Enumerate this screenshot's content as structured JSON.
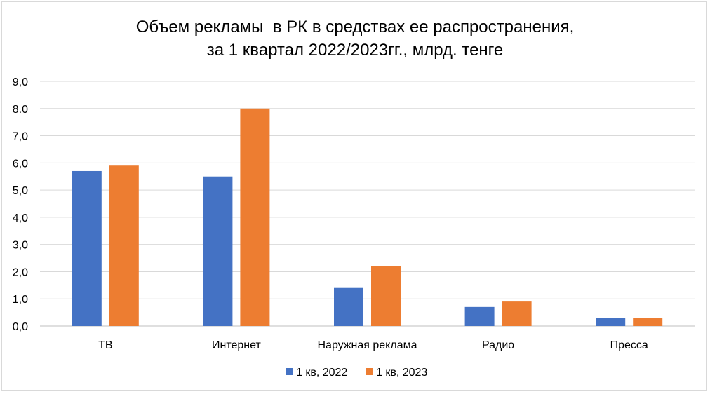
{
  "chart_data": {
    "type": "bar",
    "title_lines": [
      "Объем рекламы  в РК в средствах ее распространения,",
      "за 1 квартал 2022/2023гг., млрд. тенге"
    ],
    "xlabel": "",
    "ylabel": "",
    "categories": [
      "ТВ",
      "Интернет",
      "Наружная реклама",
      "Радио",
      "Пресса"
    ],
    "series": [
      {
        "name": "1 кв, 2022",
        "color": "#4472C4",
        "values": [
          5.7,
          5.5,
          1.4,
          0.7,
          0.3
        ]
      },
      {
        "name": "1 кв, 2023",
        "color": "#ED7D31",
        "values": [
          5.9,
          8.0,
          2.2,
          0.9,
          0.3
        ]
      }
    ],
    "ylim": [
      0,
      9
    ],
    "yticks": [
      "0,0",
      "1,0",
      "2,0",
      "3,0",
      "4,0",
      "5,0",
      "6,0",
      "7,0",
      "8.0",
      "9,0"
    ],
    "grid": true,
    "legend_position": "bottom"
  }
}
